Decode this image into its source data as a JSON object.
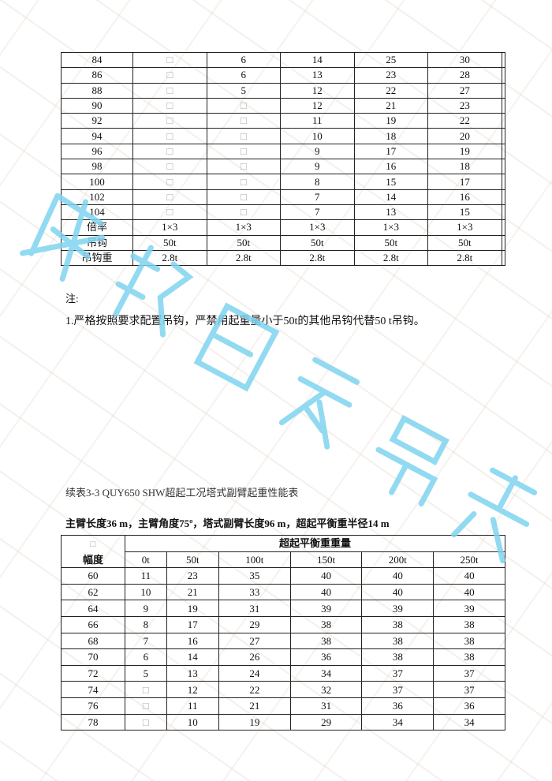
{
  "watermark": {
    "text": "成都巨象吊装",
    "color": "#7fd3ef"
  },
  "table1": {
    "rows": [
      [
        "84",
        "□",
        "6",
        "14",
        "25",
        "30",
        ""
      ],
      [
        "86",
        "□",
        "6",
        "13",
        "23",
        "28",
        ""
      ],
      [
        "88",
        "□",
        "5",
        "12",
        "22",
        "27",
        ""
      ],
      [
        "90",
        "□",
        "□",
        "12",
        "21",
        "23",
        ""
      ],
      [
        "92",
        "□",
        "□",
        "11",
        "19",
        "22",
        ""
      ],
      [
        "94",
        "□",
        "□",
        "10",
        "18",
        "20",
        ""
      ],
      [
        "96",
        "□",
        "□",
        "9",
        "17",
        "19",
        ""
      ],
      [
        "98",
        "□",
        "□",
        "9",
        "16",
        "18",
        ""
      ],
      [
        "100",
        "□",
        "□",
        "8",
        "15",
        "17",
        ""
      ],
      [
        "102",
        "□",
        "□",
        "7",
        "14",
        "16",
        ""
      ],
      [
        "104",
        "□",
        "□",
        "7",
        "13",
        "15",
        ""
      ],
      [
        "倍率",
        "1×3",
        "1×3",
        "1×3",
        "1×3",
        "1×3",
        ""
      ],
      [
        "吊钩",
        "50t",
        "50t",
        "50t",
        "50t",
        "50t",
        ""
      ],
      [
        "吊钩重",
        "2.8t",
        "2.8t",
        "2.8t",
        "2.8t",
        "2.8t",
        ""
      ]
    ]
  },
  "notes": {
    "label": "注:",
    "items": [
      "1.严格按照要求配置吊钩，严禁用起重量小于50t的其他吊钩代替50 t吊钩。"
    ]
  },
  "table2": {
    "caption": "续表3-3 QUY650 SHW超起工况塔式副臂起重性能表",
    "subcaption": "主臂长度36 m，主臂角度75º，塔式副臂长度96 m，超起平衡重半径14 m",
    "corner_box": "□",
    "row_header": "幅度",
    "group_header": "超起平衡重重量",
    "columns": [
      "0t",
      "50t",
      "100t",
      "150t",
      "200t",
      "250t"
    ],
    "rows": [
      [
        "60",
        "11",
        "23",
        "35",
        "40",
        "40",
        "40"
      ],
      [
        "62",
        "10",
        "21",
        "33",
        "40",
        "40",
        "40"
      ],
      [
        "64",
        "9",
        "19",
        "31",
        "39",
        "39",
        "39"
      ],
      [
        "66",
        "8",
        "17",
        "29",
        "38",
        "38",
        "38"
      ],
      [
        "68",
        "7",
        "16",
        "27",
        "38",
        "38",
        "38"
      ],
      [
        "70",
        "6",
        "14",
        "26",
        "36",
        "38",
        "38"
      ],
      [
        "72",
        "5",
        "13",
        "24",
        "34",
        "37",
        "37"
      ],
      [
        "74",
        "□",
        "12",
        "22",
        "32",
        "37",
        "37"
      ],
      [
        "76",
        "□",
        "11",
        "21",
        "31",
        "36",
        "36"
      ],
      [
        "78",
        "□",
        "10",
        "19",
        "29",
        "34",
        "34"
      ]
    ]
  }
}
